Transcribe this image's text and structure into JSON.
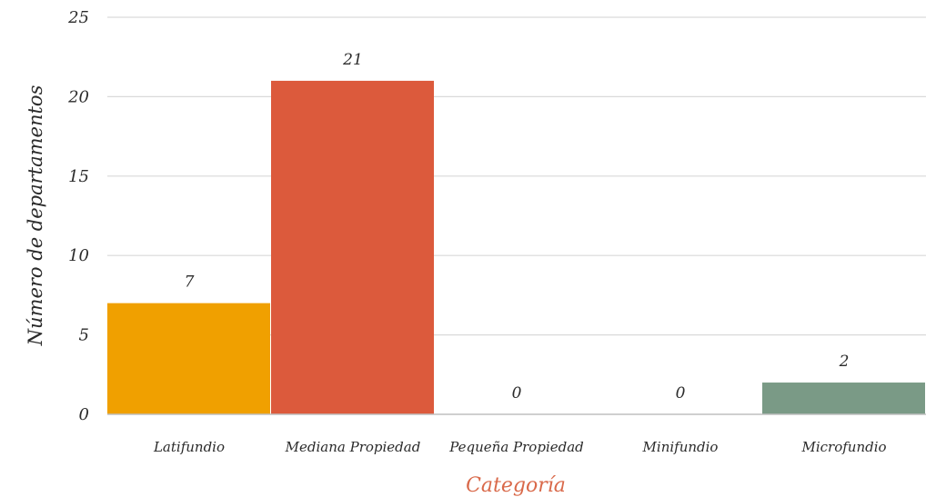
{
  "chart_data": {
    "type": "bar",
    "categories": [
      "Latifundio",
      "Mediana Propiedad",
      "Pequeña Propiedad",
      "Minifundio",
      "Microfundio"
    ],
    "values": [
      7,
      21,
      0,
      0,
      2
    ],
    "bar_colors": [
      "#f0a000",
      "#dc5a3c",
      "#dc5a3c",
      "#dc5a3c",
      "#7a9a86"
    ],
    "xlabel": "Categoría",
    "xlabel_color": "#d9694a",
    "ylabel": "Número de departamentos",
    "ylim": [
      0,
      25
    ],
    "yticks": [
      "0",
      "5",
      "10",
      "15",
      "20",
      "25"
    ],
    "grid": true,
    "data_labels": [
      "7",
      "21",
      "0",
      "0",
      "2"
    ]
  }
}
